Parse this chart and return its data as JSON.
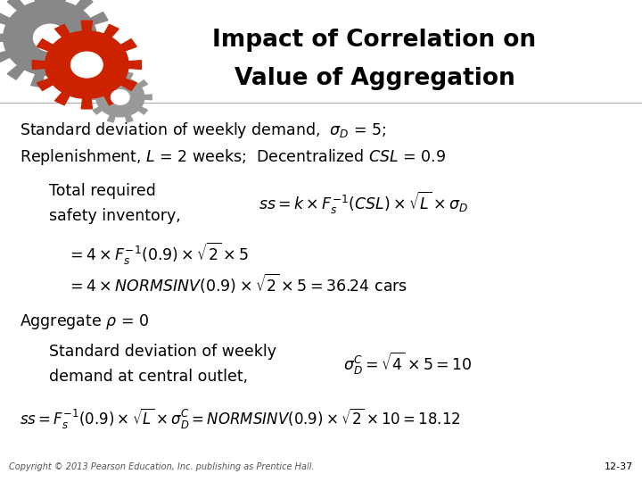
{
  "title_line1": "Impact of Correlation on",
  "title_line2": "Value of Aggregation",
  "background_color": "#ffffff",
  "text_color": "#000000",
  "title_color": "#000000",
  "copyright": "Copyright © 2013 Pearson Education, Inc. publishing as Prentice Hall.",
  "slide_number": "12-37",
  "line1": "Standard deviation of weekly demand,  $\\sigma_D$ = 5;",
  "line2": "Replenishment, $L$ = 2 weeks;  Decentralized $CSL$ = 0.9",
  "formula1": "$ss = k \\times F_s^{-1}(CSL) \\times \\sqrt{L} \\times \\sigma_D$",
  "formula2": "$= 4 \\times F_s^{-1}(0.9) \\times \\sqrt{2} \\times 5$",
  "formula3": "$= 4 \\times NORMSINV(0.9) \\times \\sqrt{2} \\times 5 = 36.24$ cars",
  "aggregate_line": "Aggregate $\\rho$ = 0",
  "std_formula": "$\\sigma_D^C = \\sqrt{4} \\times 5 = 10$",
  "last_formula": "$ss = F_s^{-1}(0.9) \\times \\sqrt{L} \\times \\sigma_D^C = NORMSINV(0.9) \\times \\sqrt{2} \\times 10 = 18.12$"
}
